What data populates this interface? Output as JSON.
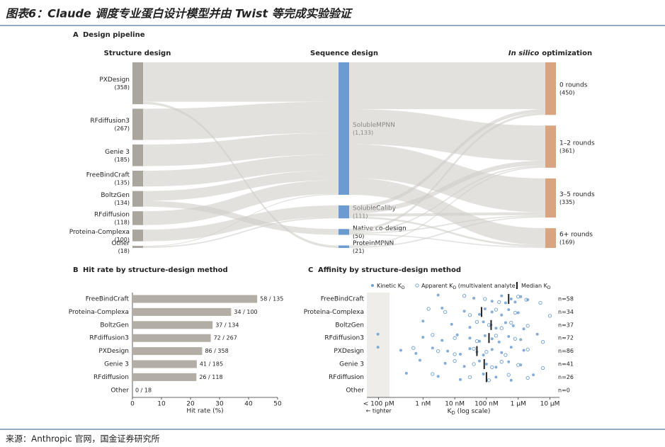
{
  "header": {
    "title": "图表6：Claude 调度专业蛋白设计模型并由 Twist 等完成实验验证"
  },
  "footer": {
    "source": "来源：Anthropic 官网，国金证券研究所"
  },
  "chart_data": [
    {
      "type": "sankey",
      "panel": "A",
      "title": "Design pipeline",
      "columns": [
        {
          "header": "Structure design",
          "color": "#aaa69e",
          "nodes": [
            {
              "name": "PXDesign",
              "value": 358,
              "value_label": "(358)"
            },
            {
              "name": "RFdiffusion3",
              "value": 267,
              "value_label": "(267)"
            },
            {
              "name": "Genie 3",
              "value": 185,
              "value_label": "(185)"
            },
            {
              "name": "FreeBindCraft",
              "value": 135,
              "value_label": "(135)"
            },
            {
              "name": "BoltzGen",
              "value": 134,
              "value_label": "(134)"
            },
            {
              "name": "RFdiffusion",
              "value": 118,
              "value_label": "(118)"
            },
            {
              "name": "Proteina-Complexa",
              "value": 100,
              "value_label": "(100)"
            },
            {
              "name": "Other",
              "value": 18,
              "value_label": "(18)"
            }
          ]
        },
        {
          "header": "Sequence design",
          "color": "#6b9bd1",
          "nodes": [
            {
              "name": "SolubleMPNN",
              "value": 1133,
              "value_label": "(1,133)"
            },
            {
              "name": "SolubleCaliby",
              "value": 111,
              "value_label": "(111)"
            },
            {
              "name": "Native co-design",
              "value": 50,
              "value_label": "(50)"
            },
            {
              "name": "ProteinMPNN",
              "value": 21,
              "value_label": "(21)"
            }
          ]
        },
        {
          "header": "optimization",
          "header_emphasis": "In silico",
          "color": "#d9a580",
          "nodes": [
            {
              "name": "0 rounds",
              "value": 450,
              "value_label": "(450)"
            },
            {
              "name": "1–2 rounds",
              "value": 361,
              "value_label": "(361)"
            },
            {
              "name": "3–5 rounds",
              "value": 335,
              "value_label": "(335)"
            },
            {
              "name": "6+ rounds",
              "value": 169,
              "value_label": "(169)"
            }
          ]
        }
      ],
      "links": [
        {
          "source": "PXDesign",
          "target": "SolubleMPNN",
          "value": 337
        },
        {
          "source": "PXDesign",
          "target": "ProteinMPNN",
          "value": 21
        },
        {
          "source": "RFdiffusion3",
          "target": "SolubleMPNN",
          "value": 267
        },
        {
          "source": "Genie 3",
          "target": "SolubleMPNN",
          "value": 185
        },
        {
          "source": "FreeBindCraft",
          "target": "SolubleMPNN",
          "value": 135
        },
        {
          "source": "BoltzGen",
          "target": "SolubleMPNN",
          "value": 84
        },
        {
          "source": "BoltzGen",
          "target": "Native co-design",
          "value": 50
        },
        {
          "source": "RFdiffusion",
          "target": "SolubleMPNN",
          "value": 118
        },
        {
          "source": "Proteina-Complexa",
          "target": "SolubleCaliby",
          "value": 100
        },
        {
          "source": "Other",
          "target": "SolubleMPNN",
          "value": 7
        },
        {
          "source": "Other",
          "target": "SolubleCaliby",
          "value": 11
        },
        {
          "source": "SolubleMPNN",
          "target": "0 rounds",
          "value": 400
        },
        {
          "source": "SolubleMPNN",
          "target": "1–2 rounds",
          "value": 300
        },
        {
          "source": "SolubleMPNN",
          "target": "3–5 rounds",
          "value": 290
        },
        {
          "source": "SolubleMPNN",
          "target": "6+ rounds",
          "value": 143
        },
        {
          "source": "SolubleCaliby",
          "target": "0 rounds",
          "value": 30
        },
        {
          "source": "SolubleCaliby",
          "target": "1–2 rounds",
          "value": 40
        },
        {
          "source": "SolubleCaliby",
          "target": "3–5 rounds",
          "value": 25
        },
        {
          "source": "SolubleCaliby",
          "target": "6+ rounds",
          "value": 16
        },
        {
          "source": "Native co-design",
          "target": "0 rounds",
          "value": 20
        },
        {
          "source": "Native co-design",
          "target": "1–2 rounds",
          "value": 11
        },
        {
          "source": "Native co-design",
          "target": "3–5 rounds",
          "value": 10
        },
        {
          "source": "Native co-design",
          "target": "6+ rounds",
          "value": 9
        },
        {
          "source": "ProteinMPNN",
          "target": "1–2 rounds",
          "value": 10
        },
        {
          "source": "ProteinMPNN",
          "target": "3–5 rounds",
          "value": 10
        },
        {
          "source": "ProteinMPNN",
          "target": "6+ rounds",
          "value": 1
        }
      ]
    },
    {
      "type": "barh",
      "panel": "B",
      "title": "Hit rate by structure-design method",
      "categories": [
        "FreeBindCraft",
        "Proteina-Complexa",
        "BoltzGen",
        "RFdiffusion3",
        "PXDesign",
        "Genie 3",
        "RFdiffusion",
        "Other"
      ],
      "values": [
        42.96,
        34,
        27.61,
        26.97,
        24.02,
        22.16,
        22.03,
        0
      ],
      "value_labels": [
        "58 / 135",
        "34 / 100",
        "37 / 134",
        "72 / 267",
        "86 / 358",
        "41 / 185",
        "26 / 118",
        "0 / 18"
      ],
      "color": "#b3aea5",
      "xlim": [
        0,
        50
      ],
      "xticks": [
        0,
        10,
        20,
        30,
        40,
        50
      ],
      "xlabel": "Hit rate (%)"
    },
    {
      "type": "strip",
      "panel": "C",
      "title": "Affinity by structure-design method",
      "log_x": true,
      "categories": [
        "FreeBindCraft",
        "Proteina-Complexa",
        "BoltzGen",
        "RFdiffusion3",
        "PXDesign",
        "Genie 3",
        "RFdiffusion",
        "Other"
      ],
      "n_labels": [
        "n=58",
        "n=34",
        "n=37",
        "n=72",
        "n=86",
        "n=41",
        "n=26",
        "n=0"
      ],
      "medians": [
        5e-07,
        7e-08,
        1.4e-07,
        1.2e-07,
        5e-08,
        8.5e-08,
        1e-07,
        null
      ],
      "kinetic": [
        [
          3e-09,
          4e-08,
          1.5e-07,
          3e-07,
          6e-07,
          8e-07,
          1.2e-06,
          2e-06,
          4e-07
        ],
        [
          4e-09,
          2e-08,
          6e-08,
          9e-08,
          1.5e-07,
          3e-07,
          5e-07,
          1e-06
        ],
        [
          1e-09,
          8e-09,
          3e-08,
          8e-08,
          1.4e-07,
          2e-07,
          4e-07,
          7e-07,
          1.5e-06
        ],
        [
          3.8e-11,
          1e-09,
          4e-09,
          1.2e-08,
          3e-08,
          6e-08,
          9e-08,
          1.5e-07,
          2.5e-07,
          5e-07,
          1.2e-06,
          4e-06
        ],
        [
          3.8e-11,
          2e-10,
          6e-10,
          2e-09,
          6e-09,
          1.5e-08,
          3e-08,
          5e-08,
          8e-08,
          1.5e-07,
          3e-07,
          6e-07,
          1.5e-06
        ],
        [
          8e-10,
          5e-09,
          2e-08,
          6e-08,
          1e-07,
          2e-07,
          5e-07,
          1.2e-06
        ],
        [
          3e-10,
          3e-09,
          1.5e-08,
          8e-08,
          2e-07,
          6e-07,
          3e-06
        ],
        []
      ],
      "apparent": [
        [
          2e-08,
          9e-08,
          2.5e-07,
          1e-06,
          1.8e-06,
          5e-06
        ],
        [
          1.5e-09,
          5e-09,
          3e-08,
          2e-07,
          8e-07,
          1e-05
        ],
        [
          5e-08,
          1.2e-07,
          3e-07,
          6e-07,
          2e-06
        ],
        [
          2e-09,
          1e-08,
          5e-08,
          2e-07,
          8e-07,
          6e-06
        ],
        [
          5e-10,
          3e-09,
          1e-08,
          4e-08,
          1e-07,
          4e-07,
          2e-06
        ],
        [
          1e-08,
          4e-08,
          1.5e-07,
          3e-07,
          1e-06,
          6e-06
        ],
        [
          2e-09,
          3e-08,
          1.2e-07,
          5e-07,
          2e-06
        ],
        []
      ],
      "color": "#6f9fd0",
      "median_color": "#222222",
      "legend": [
        {
          "text": "Kinetic K",
          "sub": "D"
        },
        {
          "text": "Apparent K",
          "sub": "D",
          "after": " (multivalent analyte)"
        },
        {
          "text": "Median K",
          "sub": "D"
        }
      ],
      "xlim": [
        1.7e-11,
        2e-05
      ],
      "xticks": [
        {
          "value": 4e-11,
          "label": "< 100 pM"
        },
        {
          "value": 1e-09,
          "label": "1 nM"
        },
        {
          "value": 1e-08,
          "label": "10 nM"
        },
        {
          "value": 1e-07,
          "label": "100 nM"
        },
        {
          "value": 1e-06,
          "label": "1 µM"
        },
        {
          "value": 1e-05,
          "label": "10 µM"
        }
      ],
      "floor_note": "← tighter",
      "xlabel": {
        "text": "K",
        "sub": "D",
        "after": " (log scale)"
      }
    }
  ]
}
